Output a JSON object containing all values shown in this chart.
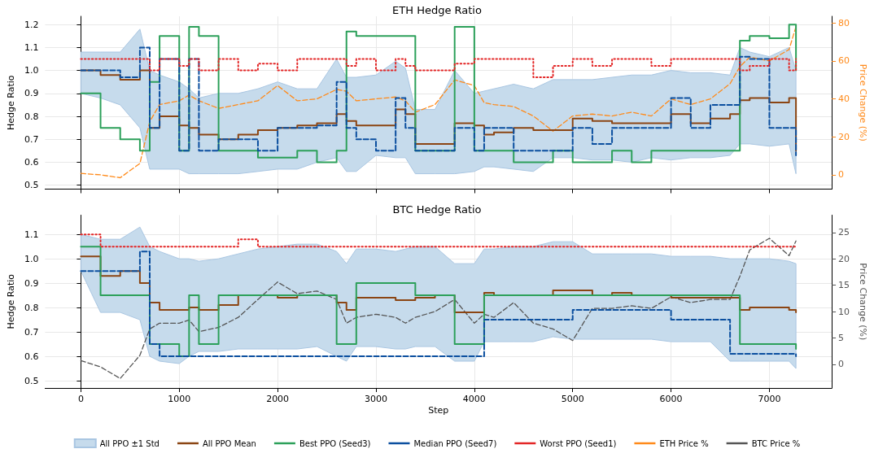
{
  "chart_data": [
    {
      "type": "step",
      "title": "ETH Hedge Ratio",
      "ylabel": "Hedge Ratio",
      "y2label": "Price Change (%)",
      "tick_labels": "y",
      "grid": true,
      "legend": "bottom",
      "marker": "none",
      "annotations": [
        "All PPO ±1 Std"
      ],
      "x": [
        0,
        200,
        400,
        600,
        700,
        800,
        1000,
        1100,
        1200,
        1400,
        1600,
        1800,
        2000,
        2200,
        2400,
        2600,
        2700,
        2800,
        3000,
        3200,
        3300,
        3400,
        3600,
        3800,
        4000,
        4100,
        4200,
        4400,
        4600,
        4800,
        5000,
        5200,
        5400,
        5600,
        5800,
        6000,
        6200,
        6400,
        6600,
        6700,
        6800,
        7000,
        7200,
        7270
      ],
      "xlim": [
        -364,
        7634
      ],
      "xticks": [
        0,
        1000,
        2000,
        3000,
        4000,
        5000,
        6000,
        7000
      ],
      "ylim": [
        0.483,
        1.236
      ],
      "yticks": [
        0.5,
        0.6,
        0.7,
        0.8,
        0.9,
        {
          "value": 1,
          "label": "1.0"
        },
        1.1,
        1.2
      ],
      "y2lim": [
        -7.5,
        83.5
      ],
      "y2ticks": [
        0,
        20,
        40,
        60,
        80
      ],
      "series": [
        {
          "name": "All PPO Mean",
          "color": "#8b4513",
          "line_style": "solid",
          "values": [
            1.0,
            0.98,
            0.96,
            1.0,
            0.75,
            0.8,
            0.76,
            0.75,
            0.72,
            0.7,
            0.72,
            0.74,
            0.75,
            0.76,
            0.77,
            0.81,
            0.78,
            0.76,
            0.76,
            0.83,
            0.81,
            0.68,
            0.68,
            0.77,
            0.76,
            0.72,
            0.73,
            0.75,
            0.74,
            0.74,
            0.79,
            0.78,
            0.77,
            0.77,
            0.77,
            0.81,
            0.77,
            0.79,
            0.81,
            0.87,
            0.88,
            0.86,
            0.88,
            0.65
          ],
          "lower": [
            0.9,
            0.88,
            0.85,
            0.75,
            0.57,
            0.57,
            0.57,
            0.55,
            0.55,
            0.55,
            0.55,
            0.56,
            0.57,
            0.57,
            0.6,
            0.62,
            0.56,
            0.56,
            0.63,
            0.62,
            0.62,
            0.55,
            0.55,
            0.55,
            0.56,
            0.58,
            0.58,
            0.57,
            0.56,
            0.62,
            0.62,
            0.61,
            0.61,
            0.6,
            0.62,
            0.61,
            0.62,
            0.62,
            0.63,
            0.68,
            0.68,
            0.67,
            0.68,
            0.55
          ],
          "upper": [
            1.08,
            1.08,
            1.08,
            1.18,
            1.0,
            0.98,
            0.95,
            0.92,
            0.88,
            0.9,
            0.9,
            0.92,
            0.95,
            0.92,
            0.92,
            1.05,
            0.97,
            0.97,
            0.98,
            1.04,
            1.01,
            0.83,
            0.83,
            1.0,
            0.9,
            0.91,
            0.92,
            0.94,
            0.92,
            0.96,
            0.96,
            0.96,
            0.97,
            0.98,
            0.98,
            1.0,
            0.99,
            0.99,
            0.98,
            1.1,
            1.08,
            1.06,
            1.1,
            1.0
          ]
        },
        {
          "name": "Best PPO (Seed3)",
          "color": "#2ca05a",
          "line_style": "solid",
          "values": [
            0.9,
            0.75,
            0.7,
            0.65,
            0.95,
            1.15,
            0.65,
            1.19,
            1.15,
            0.65,
            0.65,
            0.62,
            0.62,
            0.65,
            0.6,
            0.65,
            1.17,
            1.15,
            1.15,
            1.15,
            1.15,
            0.65,
            0.65,
            1.19,
            0.65,
            0.65,
            0.65,
            0.6,
            0.6,
            0.65,
            0.6,
            0.6,
            0.65,
            0.6,
            0.65,
            0.65,
            0.65,
            0.65,
            0.65,
            1.13,
            1.15,
            1.14,
            1.2,
            1.0
          ]
        },
        {
          "name": "Median PPO (Seed7)",
          "color": "#0b4f9f",
          "line_style": "dashed",
          "values": [
            1.0,
            1.0,
            0.97,
            1.1,
            0.75,
            1.05,
            0.65,
            1.05,
            0.65,
            0.7,
            0.7,
            0.65,
            0.75,
            0.75,
            0.76,
            0.95,
            0.75,
            0.7,
            0.65,
            0.88,
            0.75,
            0.65,
            0.65,
            0.75,
            0.65,
            0.75,
            0.75,
            0.65,
            0.65,
            0.65,
            0.75,
            0.68,
            0.75,
            0.75,
            0.75,
            0.88,
            0.75,
            0.85,
            0.85,
            1.06,
            1.05,
            0.75,
            0.75,
            0.63
          ]
        },
        {
          "name": "Worst PPO (Seed1)",
          "color": "#e32626",
          "line_style": "dotted",
          "values": [
            1.05,
            1.05,
            1.05,
            1.05,
            1.0,
            1.05,
            1.02,
            1.05,
            1.0,
            1.05,
            1.0,
            1.03,
            1.0,
            1.05,
            1.05,
            1.05,
            1.02,
            1.05,
            1.0,
            1.05,
            1.02,
            1.0,
            1.0,
            1.03,
            1.05,
            1.05,
            1.05,
            1.05,
            0.97,
            1.02,
            1.05,
            1.02,
            1.05,
            1.05,
            1.02,
            1.05,
            1.05,
            1.05,
            1.05,
            1.0,
            1.02,
            1.05,
            1.0,
            1.05
          ]
        },
        {
          "name": "ETH Price %",
          "type": "line",
          "color": "#ff8a1a",
          "line_style": "dashed",
          "axis": "y2",
          "values": [
            0.8,
            0,
            -1.5,
            6,
            28,
            37,
            39,
            42,
            39,
            35,
            37,
            39,
            47,
            39,
            40,
            45,
            44,
            39,
            40,
            41,
            39,
            33,
            37,
            50,
            47,
            38,
            37,
            36,
            31,
            23,
            31,
            32,
            31,
            33,
            31,
            40,
            37,
            40,
            48,
            57,
            62,
            60,
            66,
            78
          ]
        }
      ]
    },
    {
      "type": "step",
      "title": "BTC Hedge Ratio",
      "ylabel": "Hedge Ratio",
      "y2label": "Price Change (%)",
      "xlabel": "Step",
      "grid": true,
      "legend": "bottom",
      "marker": "none",
      "x": [
        0,
        200,
        400,
        600,
        700,
        800,
        1000,
        1100,
        1200,
        1400,
        1600,
        1800,
        2000,
        2200,
        2400,
        2600,
        2700,
        2800,
        3000,
        3200,
        3300,
        3400,
        3600,
        3800,
        4000,
        4100,
        4200,
        4400,
        4600,
        4800,
        5000,
        5200,
        5400,
        5600,
        5800,
        6000,
        6200,
        6400,
        6600,
        6700,
        6800,
        7000,
        7200,
        7270
      ],
      "xlim": [
        -364,
        7634
      ],
      "xticks": [
        0,
        1000,
        2000,
        3000,
        4000,
        5000,
        6000,
        7000
      ],
      "ylim": [
        0.47,
        1.179
      ],
      "yticks": [
        0.5,
        0.6,
        0.7,
        0.8,
        0.9,
        {
          "value": 1,
          "label": "1.0"
        },
        1.1
      ],
      "y2lim": [
        -4.5,
        28.3
      ],
      "y2ticks": [
        0,
        5,
        10,
        15,
        20,
        25
      ],
      "series": [
        {
          "name": "All PPO Mean",
          "color": "#8b4513",
          "line_style": "solid",
          "values": [
            1.01,
            0.93,
            0.95,
            0.9,
            0.82,
            0.79,
            0.79,
            0.8,
            0.79,
            0.81,
            0.85,
            0.85,
            0.84,
            0.85,
            0.85,
            0.82,
            0.79,
            0.84,
            0.84,
            0.83,
            0.83,
            0.84,
            0.85,
            0.78,
            0.78,
            0.86,
            0.85,
            0.85,
            0.85,
            0.87,
            0.87,
            0.85,
            0.86,
            0.85,
            0.85,
            0.84,
            0.84,
            0.84,
            0.84,
            0.79,
            0.8,
            0.8,
            0.79,
            0.78
          ],
          "lower": [
            0.95,
            0.78,
            0.78,
            0.75,
            0.6,
            0.58,
            0.57,
            0.6,
            0.62,
            0.62,
            0.63,
            0.63,
            0.63,
            0.63,
            0.64,
            0.6,
            0.58,
            0.64,
            0.64,
            0.63,
            0.63,
            0.64,
            0.64,
            0.58,
            0.58,
            0.66,
            0.66,
            0.66,
            0.66,
            0.68,
            0.67,
            0.67,
            0.67,
            0.67,
            0.67,
            0.66,
            0.66,
            0.66,
            0.58,
            0.58,
            0.58,
            0.58,
            0.58,
            0.55
          ],
          "upper": [
            1.1,
            1.08,
            1.08,
            1.13,
            1.05,
            1.03,
            1.0,
            1.0,
            0.99,
            1.0,
            1.02,
            1.04,
            1.05,
            1.06,
            1.06,
            1.03,
            0.98,
            1.04,
            1.04,
            1.03,
            1.04,
            1.05,
            1.05,
            0.98,
            0.98,
            1.04,
            1.04,
            1.05,
            1.05,
            1.07,
            1.07,
            1.02,
            1.02,
            1.02,
            1.02,
            1.01,
            1.01,
            1.01,
            1.0,
            1.0,
            1.0,
            1.0,
            0.99,
            0.98
          ]
        },
        {
          "name": "Best PPO (Seed3)",
          "color": "#2ca05a",
          "line_style": "solid",
          "values": [
            1.05,
            0.85,
            0.85,
            0.85,
            0.65,
            0.65,
            0.6,
            0.85,
            0.65,
            0.85,
            0.85,
            0.85,
            0.85,
            0.85,
            0.85,
            0.65,
            0.65,
            0.9,
            0.9,
            0.9,
            0.9,
            0.85,
            0.85,
            0.65,
            0.65,
            0.85,
            0.85,
            0.85,
            0.85,
            0.85,
            0.85,
            0.85,
            0.85,
            0.85,
            0.85,
            0.85,
            0.85,
            0.85,
            0.85,
            0.65,
            0.65,
            0.65,
            0.65,
            0.63
          ]
        },
        {
          "name": "Median PPO (Seed7)",
          "color": "#0b4f9f",
          "line_style": "dashed",
          "values": [
            0.95,
            0.95,
            0.95,
            1.03,
            0.65,
            0.6,
            0.6,
            0.6,
            0.6,
            0.6,
            0.6,
            0.6,
            0.6,
            0.6,
            0.6,
            0.6,
            0.6,
            0.6,
            0.6,
            0.6,
            0.6,
            0.6,
            0.6,
            0.6,
            0.6,
            0.75,
            0.75,
            0.75,
            0.75,
            0.75,
            0.79,
            0.79,
            0.79,
            0.79,
            0.79,
            0.75,
            0.75,
            0.75,
            0.61,
            0.61,
            0.61,
            0.61,
            0.61,
            0.6
          ]
        },
        {
          "name": "Worst PPO (Seed1)",
          "color": "#e32626",
          "line_style": "dotted",
          "values": [
            1.1,
            1.05,
            1.05,
            1.05,
            1.05,
            1.05,
            1.05,
            1.05,
            1.05,
            1.05,
            1.08,
            1.05,
            1.05,
            1.05,
            1.05,
            1.05,
            1.05,
            1.05,
            1.05,
            1.05,
            1.05,
            1.05,
            1.05,
            1.05,
            1.05,
            1.05,
            1.05,
            1.05,
            1.05,
            1.05,
            1.05,
            1.05,
            1.05,
            1.05,
            1.05,
            1.05,
            1.05,
            1.05,
            1.05,
            1.05,
            1.05,
            1.05,
            1.05,
            1.05
          ]
        },
        {
          "name": "BTC Price %",
          "type": "line",
          "color": "#555555",
          "line_style": "dashed",
          "axis": "y2",
          "values": [
            0.7,
            -0.5,
            -2.7,
            1.7,
            6.7,
            7.8,
            7.8,
            8.4,
            6.2,
            7,
            8.9,
            12.3,
            15.6,
            13.4,
            13.9,
            12.3,
            7.8,
            8.9,
            9.5,
            8.9,
            7.8,
            8.9,
            10,
            12.3,
            7.8,
            9.5,
            8.9,
            11.7,
            7.8,
            6.7,
            4.5,
            10.6,
            10.6,
            11.1,
            10.6,
            12.8,
            11.7,
            12.3,
            12.3,
            16.7,
            21.7,
            23.9,
            20.6,
            23.4
          ]
        }
      ]
    }
  ]
}
